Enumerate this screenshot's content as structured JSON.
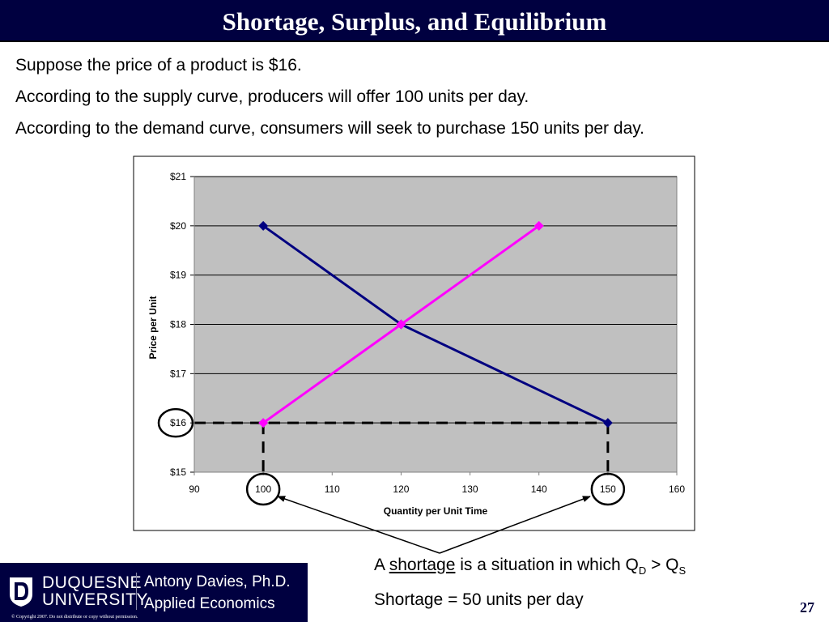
{
  "slide": {
    "title": "Shortage, Surplus, and Equilibrium",
    "page_number": "27"
  },
  "intro": {
    "line1": "Suppose the price of a product is $16.",
    "line2": "According to the supply curve, producers will offer 100 units per day.",
    "line3": "According to the demand curve, consumers will seek to purchase 150 units per day."
  },
  "footer": {
    "definition_prefix": "A ",
    "definition_term": "shortage",
    "definition_mid": " is a situation in which Q",
    "qd_sub": "D",
    "definition_gt": " > Q",
    "qs_sub": "S",
    "shortage_line": "Shortage = 50 units per day"
  },
  "logo": {
    "university_line1": "DUQUESNE",
    "university_line2": "UNIVERSITY",
    "author": "Antony Davies, Ph.D.",
    "course": "Applied Economics",
    "copyright": "© Copyright 2007. Do not distribute or copy without permission."
  },
  "colors": {
    "title_bg": "#000040",
    "plot_bg": "#c0c0c0",
    "demand": "#000080",
    "supply": "#ff00ff"
  },
  "chart_data": {
    "type": "line",
    "xlabel": "Quantity per Unit Time",
    "ylabel": "Price per Unit",
    "xlim": [
      90,
      160
    ],
    "ylim": [
      15,
      21
    ],
    "x_ticks": [
      90,
      100,
      110,
      120,
      130,
      140,
      150,
      160
    ],
    "y_ticks": [
      15,
      16,
      17,
      18,
      19,
      20,
      21
    ],
    "y_tick_labels": [
      "$15",
      "$16",
      "$17",
      "$18",
      "$19",
      "$20",
      "$21"
    ],
    "grid": "horizontal",
    "legend": "none",
    "series": [
      {
        "color": "#000080",
        "marker": "diamond",
        "points": [
          [
            100,
            20
          ],
          [
            120,
            18
          ],
          [
            150,
            16
          ]
        ]
      },
      {
        "color": "#ff00ff",
        "marker": "diamond",
        "points": [
          [
            100,
            16
          ],
          [
            120,
            18
          ],
          [
            140,
            20
          ]
        ]
      }
    ],
    "annotations": {
      "price_line": 16,
      "quantity_lines": [
        100,
        150
      ],
      "circled_x_ticks": [
        100,
        150
      ],
      "circled_y_ticks": [
        16
      ]
    }
  }
}
